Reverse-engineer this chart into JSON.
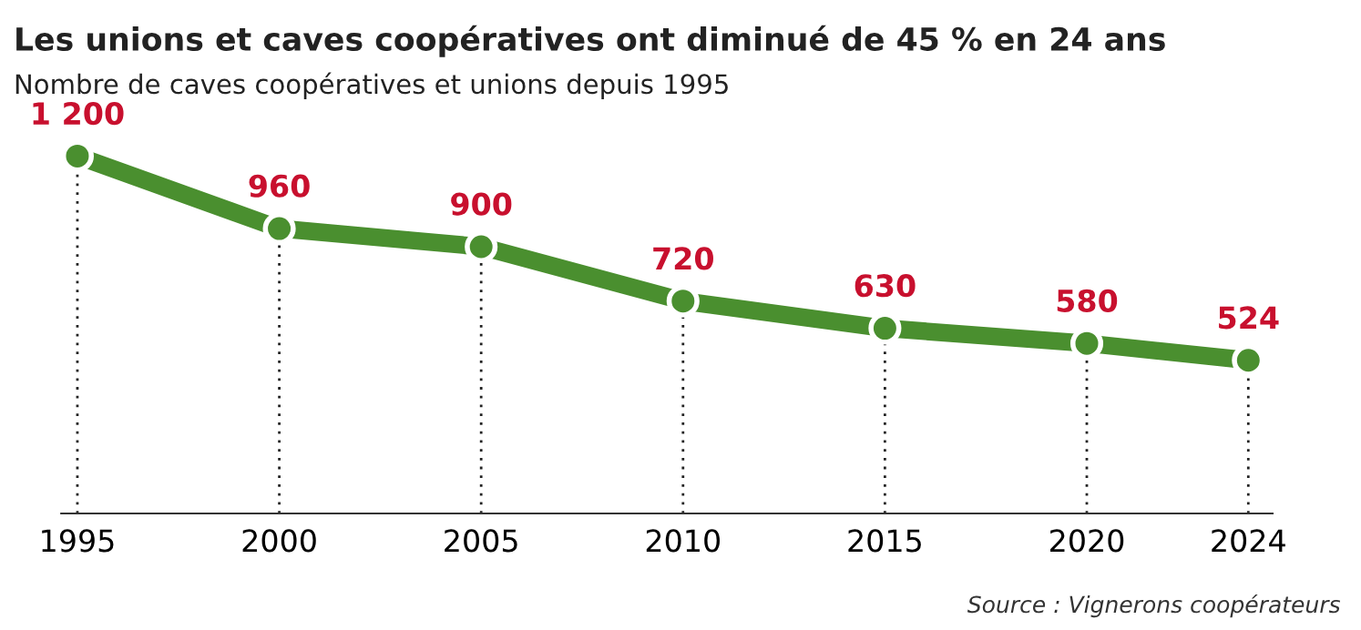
{
  "chart_data": {
    "type": "line",
    "title": "Les unions et caves coopératives ont diminué de 45 % en 24 ans",
    "subtitle": "Nombre de caves coopératives et unions depuis 1995",
    "annotations": [
      "Source : Vignerons coopérateurs"
    ],
    "x": [
      1995,
      2000,
      2005,
      2010,
      2015,
      2020,
      2024
    ],
    "series": [
      {
        "color": "#4a8f2f",
        "values": [
          1200,
          960,
          900,
          720,
          630,
          580,
          524
        ],
        "value_labels": [
          "1 200",
          "960",
          "900",
          "720",
          "630",
          "580",
          "524"
        ]
      }
    ],
    "xlim": [
      1994.6,
      2024.6
    ],
    "xticks": [
      1995,
      2000,
      2005,
      2010,
      2015,
      2020,
      2024
    ],
    "tick_labels": "x",
    "marker": "circle",
    "line_style": "solid",
    "grid": "x",
    "legend": false
  }
}
